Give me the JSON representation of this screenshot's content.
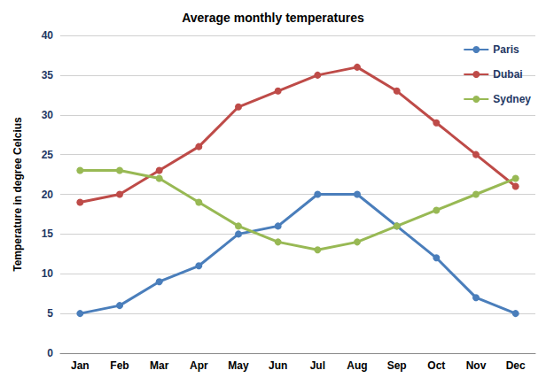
{
  "chart_data": {
    "type": "line",
    "title": "Average monthly temperatures",
    "y_label": "Temperature in degree Celcius",
    "categories": [
      "Jan",
      "Feb",
      "Mar",
      "Apr",
      "May",
      "Jun",
      "Jul",
      "Aug",
      "Sep",
      "Oct",
      "Nov",
      "Dec"
    ],
    "series": [
      {
        "name": "Paris",
        "color": "#4a7ebb",
        "values": [
          5,
          6,
          9,
          11,
          15,
          16,
          20,
          20,
          16,
          12,
          7,
          5
        ]
      },
      {
        "name": "Dubai",
        "color": "#be4b48",
        "values": [
          19,
          20,
          23,
          26,
          31,
          33,
          35,
          36,
          33,
          29,
          25,
          21
        ]
      },
      {
        "name": "Sydney",
        "color": "#98b954",
        "values": [
          23,
          23,
          22,
          19,
          16,
          14,
          13,
          14,
          16,
          18,
          20,
          22
        ]
      }
    ],
    "ylim": [
      0,
      40
    ],
    "yticks": [
      0,
      5,
      10,
      15,
      20,
      25,
      30,
      35,
      40
    ],
    "grid": true,
    "legend": "top right",
    "marker": "circle"
  }
}
